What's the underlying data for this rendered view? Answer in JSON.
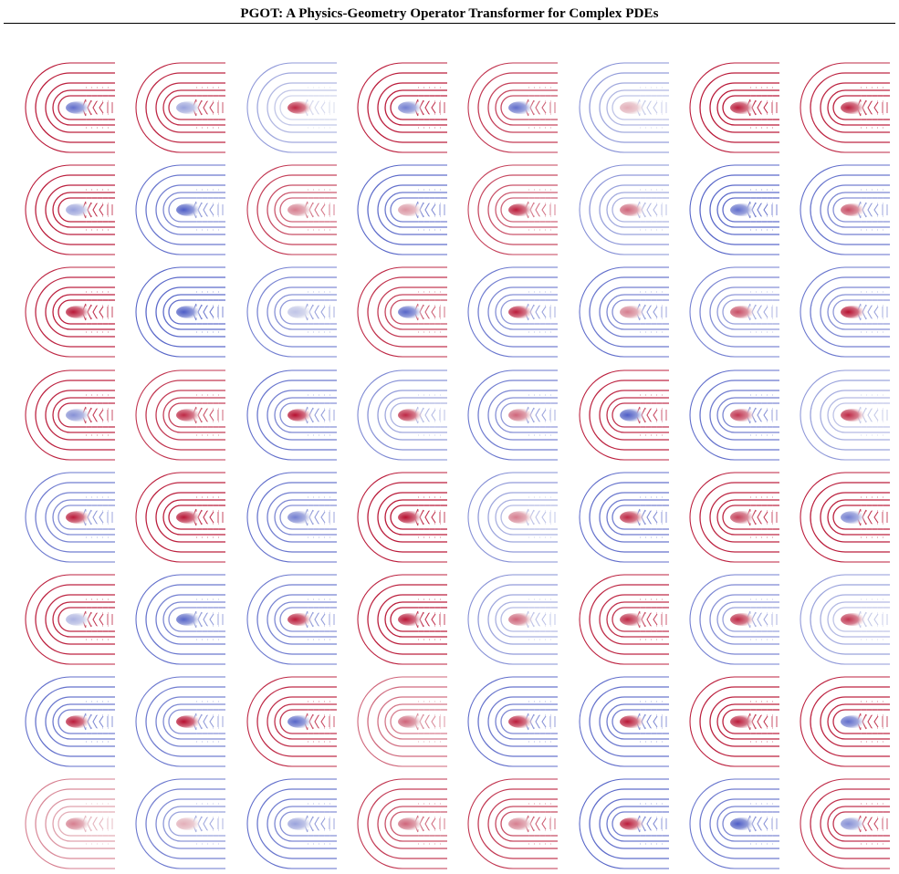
{
  "header": {
    "title": "PGOT: A Physics-Geometry Operator Transformer for Complex PDEs"
  },
  "figure": {
    "rows": 8,
    "cols": 8,
    "colormap": [
      "#3b4cc0",
      "#f7f7f7",
      "#b40426"
    ],
    "panels": [
      [
        {
          "outer": 0.92,
          "inner": 0.85,
          "blob": -0.8
        },
        {
          "outer": 0.88,
          "inner": 0.82,
          "blob": -0.5
        },
        {
          "outer": -0.55,
          "inner": -0.2,
          "blob": 0.85
        },
        {
          "outer": 0.9,
          "inner": 0.9,
          "blob": -0.7
        },
        {
          "outer": 0.8,
          "inner": 0.7,
          "blob": -0.8
        },
        {
          "outer": -0.6,
          "inner": -0.3,
          "blob": 0.3
        },
        {
          "outer": 0.9,
          "inner": 0.92,
          "blob": 0.9
        },
        {
          "outer": 0.85,
          "inner": 0.88,
          "blob": 0.88
        }
      ],
      [
        {
          "outer": 0.9,
          "inner": 0.88,
          "blob": -0.5
        },
        {
          "outer": -0.8,
          "inner": -0.6,
          "blob": -0.9
        },
        {
          "outer": 0.8,
          "inner": 0.6,
          "blob": 0.5
        },
        {
          "outer": -0.85,
          "inner": -0.7,
          "blob": 0.4
        },
        {
          "outer": 0.75,
          "inner": 0.6,
          "blob": 0.9
        },
        {
          "outer": -0.6,
          "inner": -0.4,
          "blob": 0.6
        },
        {
          "outer": -0.85,
          "inner": -0.8,
          "blob": -0.8
        },
        {
          "outer": -0.8,
          "inner": -0.6,
          "blob": 0.7
        }
      ],
      [
        {
          "outer": 0.85,
          "inner": 0.9,
          "blob": 0.92
        },
        {
          "outer": -0.85,
          "inner": -0.8,
          "blob": -0.9
        },
        {
          "outer": -0.7,
          "inner": -0.55,
          "blob": -0.3
        },
        {
          "outer": 0.85,
          "inner": 0.7,
          "blob": -0.85
        },
        {
          "outer": -0.75,
          "inner": -0.55,
          "blob": 0.9
        },
        {
          "outer": -0.8,
          "inner": -0.6,
          "blob": 0.5
        },
        {
          "outer": -0.7,
          "inner": -0.5,
          "blob": 0.7
        },
        {
          "outer": -0.75,
          "inner": -0.55,
          "blob": 0.95
        }
      ],
      [
        {
          "outer": 0.88,
          "inner": 0.85,
          "blob": -0.6
        },
        {
          "outer": 0.8,
          "inner": 0.75,
          "blob": 0.85
        },
        {
          "outer": -0.8,
          "inner": -0.6,
          "blob": 0.95
        },
        {
          "outer": -0.65,
          "inner": -0.4,
          "blob": 0.85
        },
        {
          "outer": -0.75,
          "inner": -0.55,
          "blob": 0.6
        },
        {
          "outer": 0.88,
          "inner": 0.8,
          "blob": -0.9
        },
        {
          "outer": -0.8,
          "inner": -0.65,
          "blob": 0.8
        },
        {
          "outer": -0.55,
          "inner": -0.3,
          "blob": 0.85
        }
      ],
      [
        {
          "outer": -0.75,
          "inner": -0.6,
          "blob": 0.9
        },
        {
          "outer": 0.88,
          "inner": 0.9,
          "blob": 0.92
        },
        {
          "outer": -0.8,
          "inner": -0.6,
          "blob": -0.7
        },
        {
          "outer": 0.9,
          "inner": 0.92,
          "blob": 0.95
        },
        {
          "outer": -0.6,
          "inner": -0.35,
          "blob": 0.5
        },
        {
          "outer": -0.8,
          "inner": -0.7,
          "blob": 0.85
        },
        {
          "outer": 0.88,
          "inner": 0.85,
          "blob": 0.75
        },
        {
          "outer": 0.9,
          "inner": 0.88,
          "blob": -0.7
        }
      ],
      [
        {
          "outer": 0.88,
          "inner": 0.85,
          "blob": -0.4
        },
        {
          "outer": -0.8,
          "inner": -0.6,
          "blob": -0.85
        },
        {
          "outer": -0.75,
          "inner": -0.6,
          "blob": 0.9
        },
        {
          "outer": 0.88,
          "inner": 0.9,
          "blob": 0.92
        },
        {
          "outer": -0.6,
          "inner": -0.35,
          "blob": 0.6
        },
        {
          "outer": 0.88,
          "inner": 0.8,
          "blob": 0.85
        },
        {
          "outer": -0.7,
          "inner": -0.5,
          "blob": 0.85
        },
        {
          "outer": -0.55,
          "inner": -0.3,
          "blob": 0.8
        }
      ],
      [
        {
          "outer": -0.8,
          "inner": -0.7,
          "blob": 0.9
        },
        {
          "outer": -0.75,
          "inner": -0.6,
          "blob": 0.95
        },
        {
          "outer": 0.85,
          "inner": 0.8,
          "blob": -0.85
        },
        {
          "outer": 0.6,
          "inner": 0.5,
          "blob": 0.6
        },
        {
          "outer": -0.8,
          "inner": -0.65,
          "blob": 0.9
        },
        {
          "outer": -0.8,
          "inner": -0.7,
          "blob": 0.92
        },
        {
          "outer": 0.88,
          "inner": 0.88,
          "blob": 0.9
        },
        {
          "outer": 0.88,
          "inner": 0.85,
          "blob": -0.8
        }
      ],
      [
        {
          "outer": 0.5,
          "inner": 0.3,
          "blob": 0.5
        },
        {
          "outer": -0.75,
          "inner": -0.5,
          "blob": 0.3
        },
        {
          "outer": -0.8,
          "inner": -0.6,
          "blob": -0.5
        },
        {
          "outer": 0.8,
          "inner": 0.65,
          "blob": 0.6
        },
        {
          "outer": 0.8,
          "inner": 0.7,
          "blob": 0.5
        },
        {
          "outer": -0.85,
          "inner": -0.7,
          "blob": 0.9
        },
        {
          "outer": -0.75,
          "inner": -0.65,
          "blob": -0.9
        },
        {
          "outer": 0.82,
          "inner": 0.8,
          "blob": -0.6
        }
      ]
    ]
  }
}
